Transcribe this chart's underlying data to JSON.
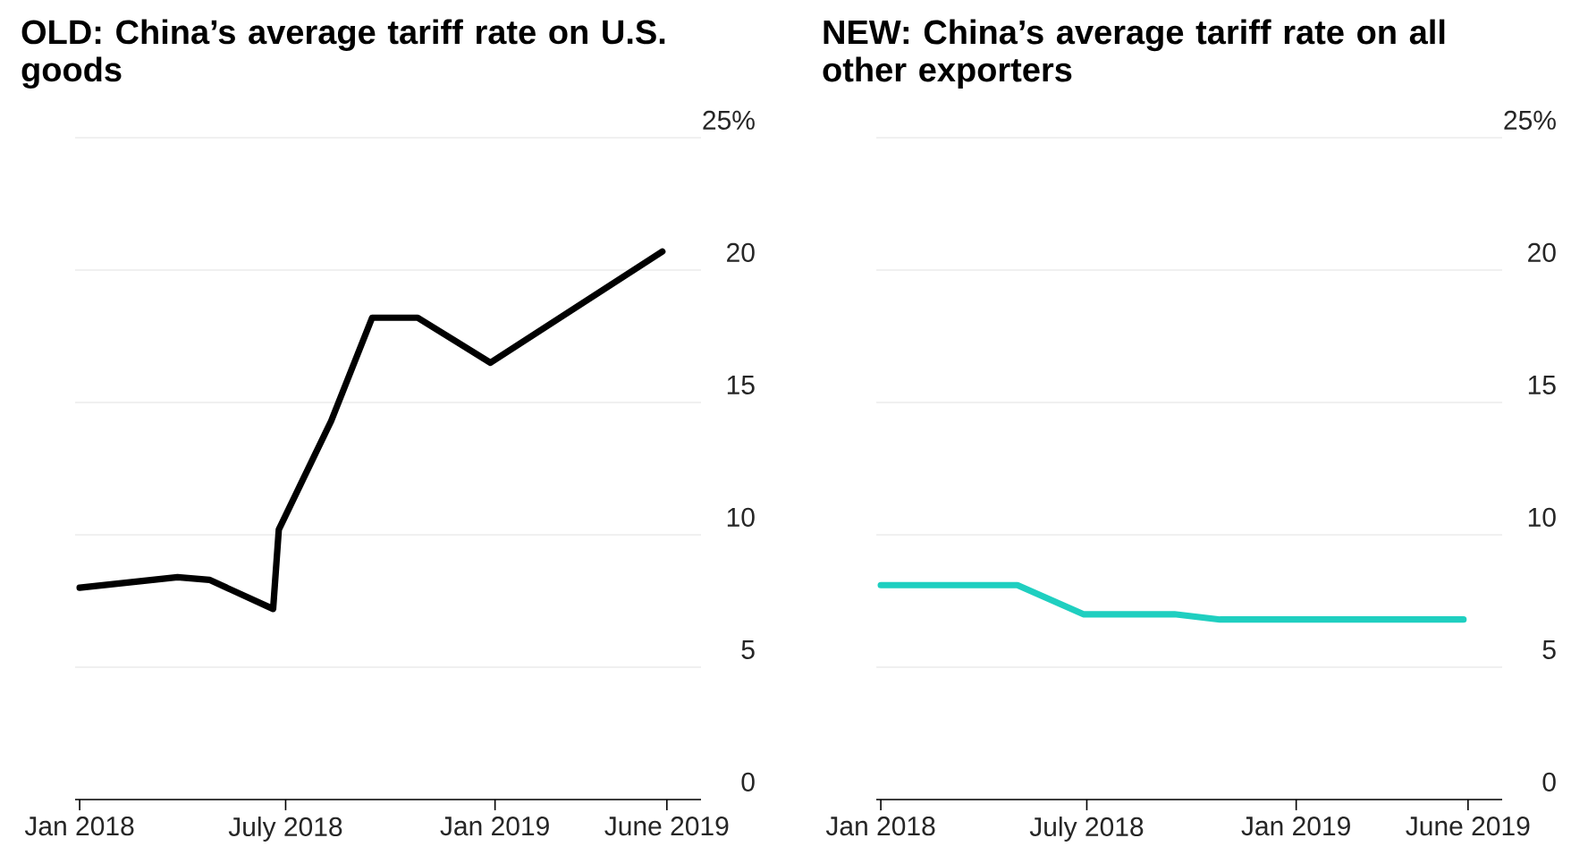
{
  "chart_data": [
    {
      "type": "line",
      "title": "OLD: China’s average tariff rate on U.S. goods",
      "x": [
        "2018-01-01",
        "2018-03-28",
        "2018-04-25",
        "2018-06-20",
        "2018-06-25",
        "2018-08-10",
        "2018-09-15",
        "2018-10-25",
        "2018-12-28",
        "2019-05-28"
      ],
      "series": [
        {
          "color": "#000000",
          "values": [
            8.0,
            8.4,
            8.3,
            7.2,
            10.2,
            14.3,
            18.2,
            18.2,
            16.5,
            20.7
          ]
        }
      ],
      "xlim": [
        "2017-12-28",
        "2019-07-01"
      ],
      "xticks": [
        {
          "value": "2018-01-01",
          "label": "Jan 2018"
        },
        {
          "value": "2018-07-01",
          "label": "July 2018"
        },
        {
          "value": "2019-01-01",
          "label": "Jan 2019"
        },
        {
          "value": "2019-06-01",
          "label": "June 2019"
        }
      ],
      "ylim": [
        0,
        25
      ],
      "yticks": [
        0,
        5,
        10,
        15,
        20,
        {
          "value": 25,
          "label": "25%"
        }
      ],
      "grid": "y"
    },
    {
      "type": "line",
      "title": "NEW: China’s average tariff rate on all other exporters",
      "x": [
        "2018-01-01",
        "2018-05-01",
        "2018-06-28",
        "2018-09-16",
        "2018-10-26",
        "2019-05-28"
      ],
      "series": [
        {
          "color": "#1fcfc0",
          "values": [
            8.1,
            8.1,
            7.0,
            7.0,
            6.8,
            6.8
          ]
        }
      ],
      "xlim": [
        "2017-12-28",
        "2019-07-01"
      ],
      "xticks": [
        {
          "value": "2018-01-01",
          "label": "Jan 2018"
        },
        {
          "value": "2018-07-01",
          "label": "July 2018"
        },
        {
          "value": "2019-01-01",
          "label": "Jan 2019"
        },
        {
          "value": "2019-06-01",
          "label": "June 2019"
        }
      ],
      "ylim": [
        0,
        25
      ],
      "yticks": [
        0,
        5,
        10,
        15,
        20,
        {
          "value": 25,
          "label": "25%"
        }
      ],
      "grid": "y"
    }
  ]
}
